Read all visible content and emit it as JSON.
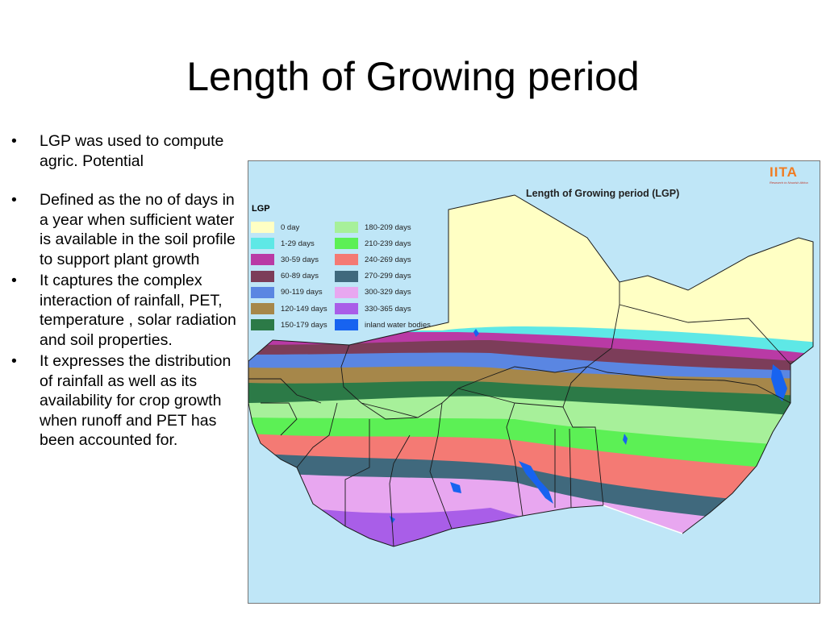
{
  "slide": {
    "title": "Length of Growing period",
    "bullets": [
      "LGP was used to compute agric. Potential",
      "Defined as the no of days in a year when sufficient water is available in the soil profile to support plant growth",
      "It captures the complex interaction of rainfall, PET,  temperature , solar radiation and soil properties.",
      "It expresses the distribution of rainfall as well as its availability for crop growth when runoff and PET has been accounted for."
    ]
  },
  "map": {
    "title": "Length of Growing period (LGP)",
    "logo": "IITA",
    "logo_tagline": "Research to Nourish Africa",
    "legend_title": "LGP",
    "legend_col1": [
      {
        "label": "0 day",
        "color": "#ffffc4"
      },
      {
        "label": "1-29 days",
        "color": "#5ee8e6"
      },
      {
        "label": "30-59 days",
        "color": "#b93aa5"
      },
      {
        "label": "60-89 days",
        "color": "#7c3d59"
      },
      {
        "label": "90-119 days",
        "color": "#5a86e2"
      },
      {
        "label": "120-149 days",
        "color": "#a6874a"
      },
      {
        "label": "150-179 days",
        "color": "#2c7a47"
      }
    ],
    "legend_col2": [
      {
        "label": "180-209 days",
        "color": "#a7f09a"
      },
      {
        "label": "210-239 days",
        "color": "#5cf055"
      },
      {
        "label": "240-269 days",
        "color": "#f47a74"
      },
      {
        "label": "270-299 days",
        "color": "#40697d"
      },
      {
        "label": "300-329 days",
        "color": "#e8a7f0"
      },
      {
        "label": "330-365 days",
        "color": "#a95ee8"
      },
      {
        "label": "inland water bodies",
        "color": "#1763f0"
      }
    ],
    "colors": {
      "ocean": "#bfe6f7",
      "border": "#1a1a1a"
    }
  }
}
